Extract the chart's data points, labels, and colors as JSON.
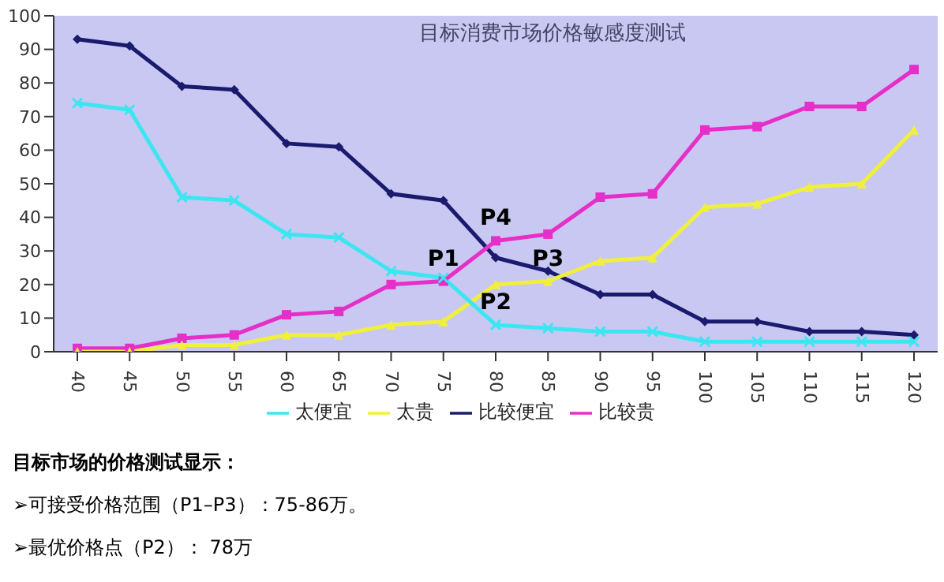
{
  "chart_data": {
    "type": "line",
    "title": "目标消费市场价格敏感度测试",
    "categories": [
      "40",
      "45",
      "50",
      "55",
      "60",
      "65",
      "70",
      "75",
      "80",
      "85",
      "90",
      "95",
      "100",
      "105",
      "110",
      "115",
      "120"
    ],
    "series": [
      {
        "name": "比较便宜",
        "color": "#1a1a6e",
        "marker": "diamond",
        "values": [
          93,
          91,
          79,
          78,
          62,
          61,
          47,
          45,
          28,
          24,
          17,
          17,
          9,
          9,
          6,
          6,
          5
        ]
      },
      {
        "name": "比较贵",
        "color": "#e62ec8",
        "marker": "square",
        "values": [
          1,
          1,
          4,
          5,
          11,
          12,
          20,
          21,
          33,
          35,
          46,
          47,
          66,
          67,
          73,
          73,
          84
        ]
      },
      {
        "name": "太贵",
        "color": "#f0f03c",
        "marker": "triangle",
        "values": [
          0,
          0,
          2,
          2,
          5,
          5,
          8,
          9,
          20,
          21,
          27,
          28,
          43,
          44,
          49,
          50,
          66
        ]
      },
      {
        "name": "太便宜",
        "color": "#3ce6f0",
        "marker": "cross",
        "values": [
          74,
          72,
          46,
          45,
          35,
          34,
          24,
          22,
          8,
          7,
          6,
          6,
          3,
          3,
          3,
          3,
          3
        ]
      }
    ],
    "ylim": [
      0,
      100
    ],
    "yticks": [
      0,
      10,
      20,
      30,
      40,
      50,
      60,
      70,
      80,
      90,
      100
    ],
    "grid": false,
    "legend": "bottom",
    "annotations": [
      {
        "text": "P1",
        "x": "75",
        "y": 21
      },
      {
        "text": "P2",
        "x": "80",
        "y": 8
      },
      {
        "text": "P3",
        "x": "85",
        "y": 21
      },
      {
        "text": "P4",
        "x": "80",
        "y": 33
      },
      "目标市场的价格测试显示：",
      "➢可接受价格范围（P1–P3）：75-86万。",
      "➢最优价格点（P2）： 78万"
    ]
  }
}
